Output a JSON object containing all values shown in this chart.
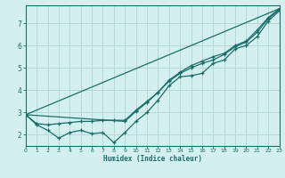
{
  "xlabel": "Humidex (Indice chaleur)",
  "background_color": "#d4efef",
  "line_color": "#1a6e6a",
  "grid_color": "#b8d8d8",
  "xlim": [
    0,
    23
  ],
  "ylim": [
    1.5,
    7.8
  ],
  "xticks": [
    0,
    1,
    2,
    3,
    4,
    5,
    6,
    7,
    8,
    9,
    10,
    11,
    12,
    13,
    14,
    15,
    16,
    17,
    18,
    19,
    20,
    21,
    22,
    23
  ],
  "yticks": [
    2,
    3,
    4,
    5,
    6,
    7
  ],
  "series1_x": [
    0,
    1,
    2,
    3,
    4,
    5,
    6,
    7,
    8,
    9,
    10,
    11,
    12,
    13,
    14,
    15,
    16,
    17,
    18,
    19,
    20,
    21,
    22,
    23
  ],
  "series1_y": [
    2.9,
    2.45,
    2.2,
    1.85,
    2.1,
    2.2,
    2.05,
    2.1,
    1.65,
    2.1,
    2.6,
    3.0,
    3.55,
    4.2,
    4.6,
    4.65,
    4.75,
    5.2,
    5.35,
    5.85,
    6.0,
    6.4,
    7.1,
    7.55
  ],
  "series2_x": [
    0,
    1,
    2,
    3,
    4,
    5,
    6,
    7,
    8,
    9,
    10,
    11,
    12,
    13,
    14,
    15,
    16,
    17,
    18,
    19,
    20,
    21,
    22,
    23
  ],
  "series2_y": [
    2.9,
    2.5,
    2.45,
    2.5,
    2.55,
    2.6,
    2.6,
    2.65,
    2.65,
    2.65,
    3.1,
    3.5,
    3.9,
    4.4,
    4.75,
    5.0,
    5.2,
    5.35,
    5.6,
    5.95,
    6.15,
    6.6,
    7.2,
    7.6
  ],
  "series3_x": [
    0,
    9,
    10,
    11,
    12,
    13,
    14,
    15,
    16,
    17,
    18,
    19,
    20,
    21,
    22,
    23
  ],
  "series3_y": [
    2.9,
    2.6,
    3.05,
    3.45,
    3.9,
    4.45,
    4.8,
    5.1,
    5.3,
    5.5,
    5.65,
    6.0,
    6.2,
    6.7,
    7.25,
    7.65
  ],
  "series4_x": [
    0,
    23
  ],
  "series4_y": [
    2.9,
    7.65
  ]
}
